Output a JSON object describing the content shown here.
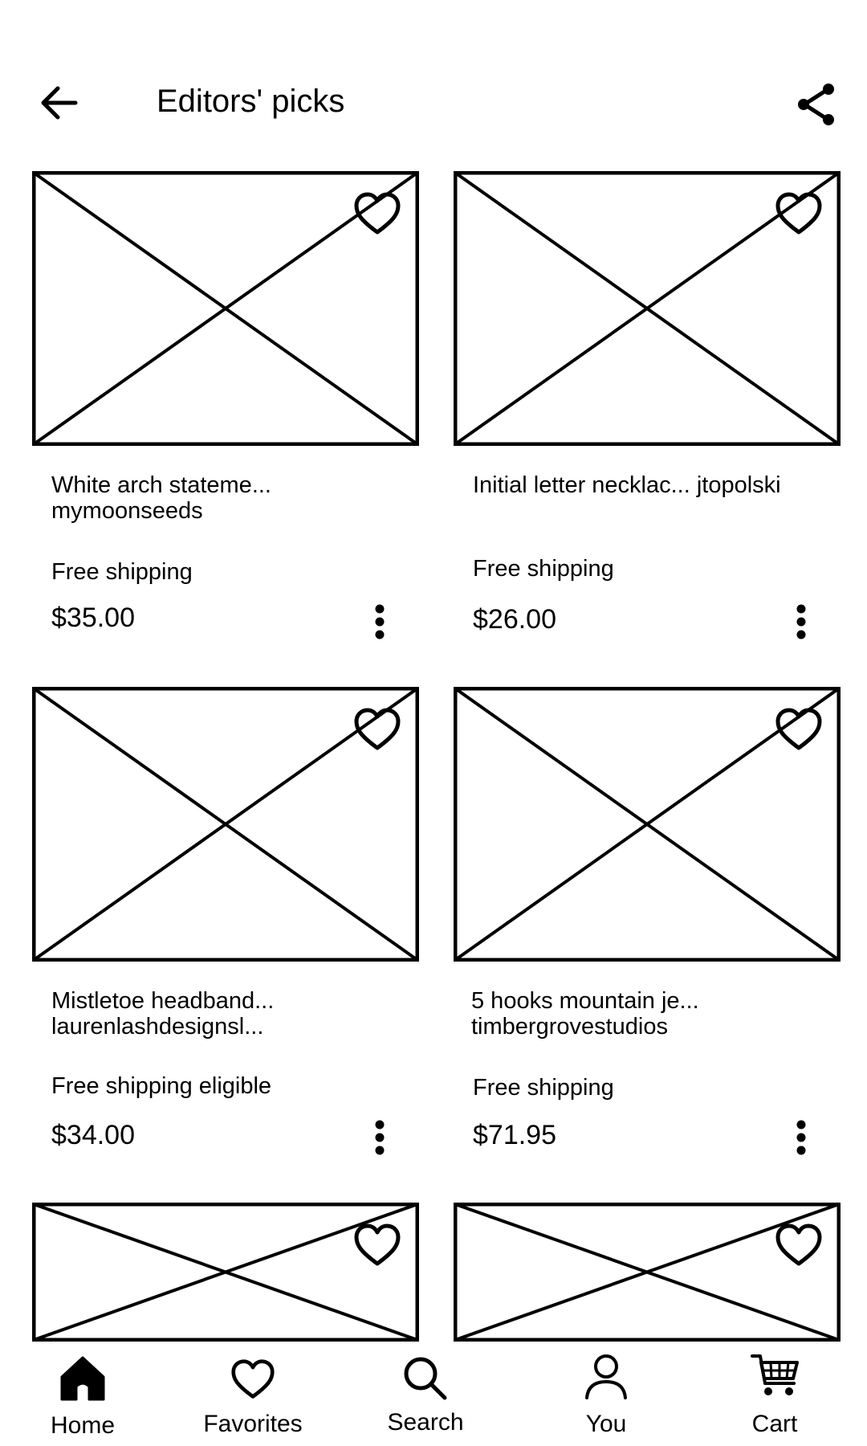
{
  "header": {
    "title": "Editors' picks",
    "back_icon": "arrow-left-icon",
    "share_icon": "share-icon"
  },
  "products": [
    {
      "title": "White arch stateme...",
      "shop": "mymoonseeds",
      "shipping": "Free shipping",
      "price": "$35.00"
    },
    {
      "title": "Initial letter necklac... jtopolski",
      "shop": "",
      "shipping": "Free shipping",
      "price": "$26.00"
    },
    {
      "title": "Mistletoe headband...",
      "shop": "laurenlashdesignsl...",
      "shipping": "Free shipping eligible",
      "price": "$34.00"
    },
    {
      "title": "5 hooks mountain je...",
      "shop": "timbergrovestudios",
      "shipping": "Free shipping",
      "price": "$71.95"
    }
  ],
  "bottom_nav": [
    {
      "label": "Home",
      "icon": "home-icon"
    },
    {
      "label": "Favorites",
      "icon": "heart-icon"
    },
    {
      "label": "Search",
      "icon": "search-icon"
    },
    {
      "label": "You",
      "icon": "user-icon"
    },
    {
      "label": "Cart",
      "icon": "cart-icon"
    }
  ]
}
